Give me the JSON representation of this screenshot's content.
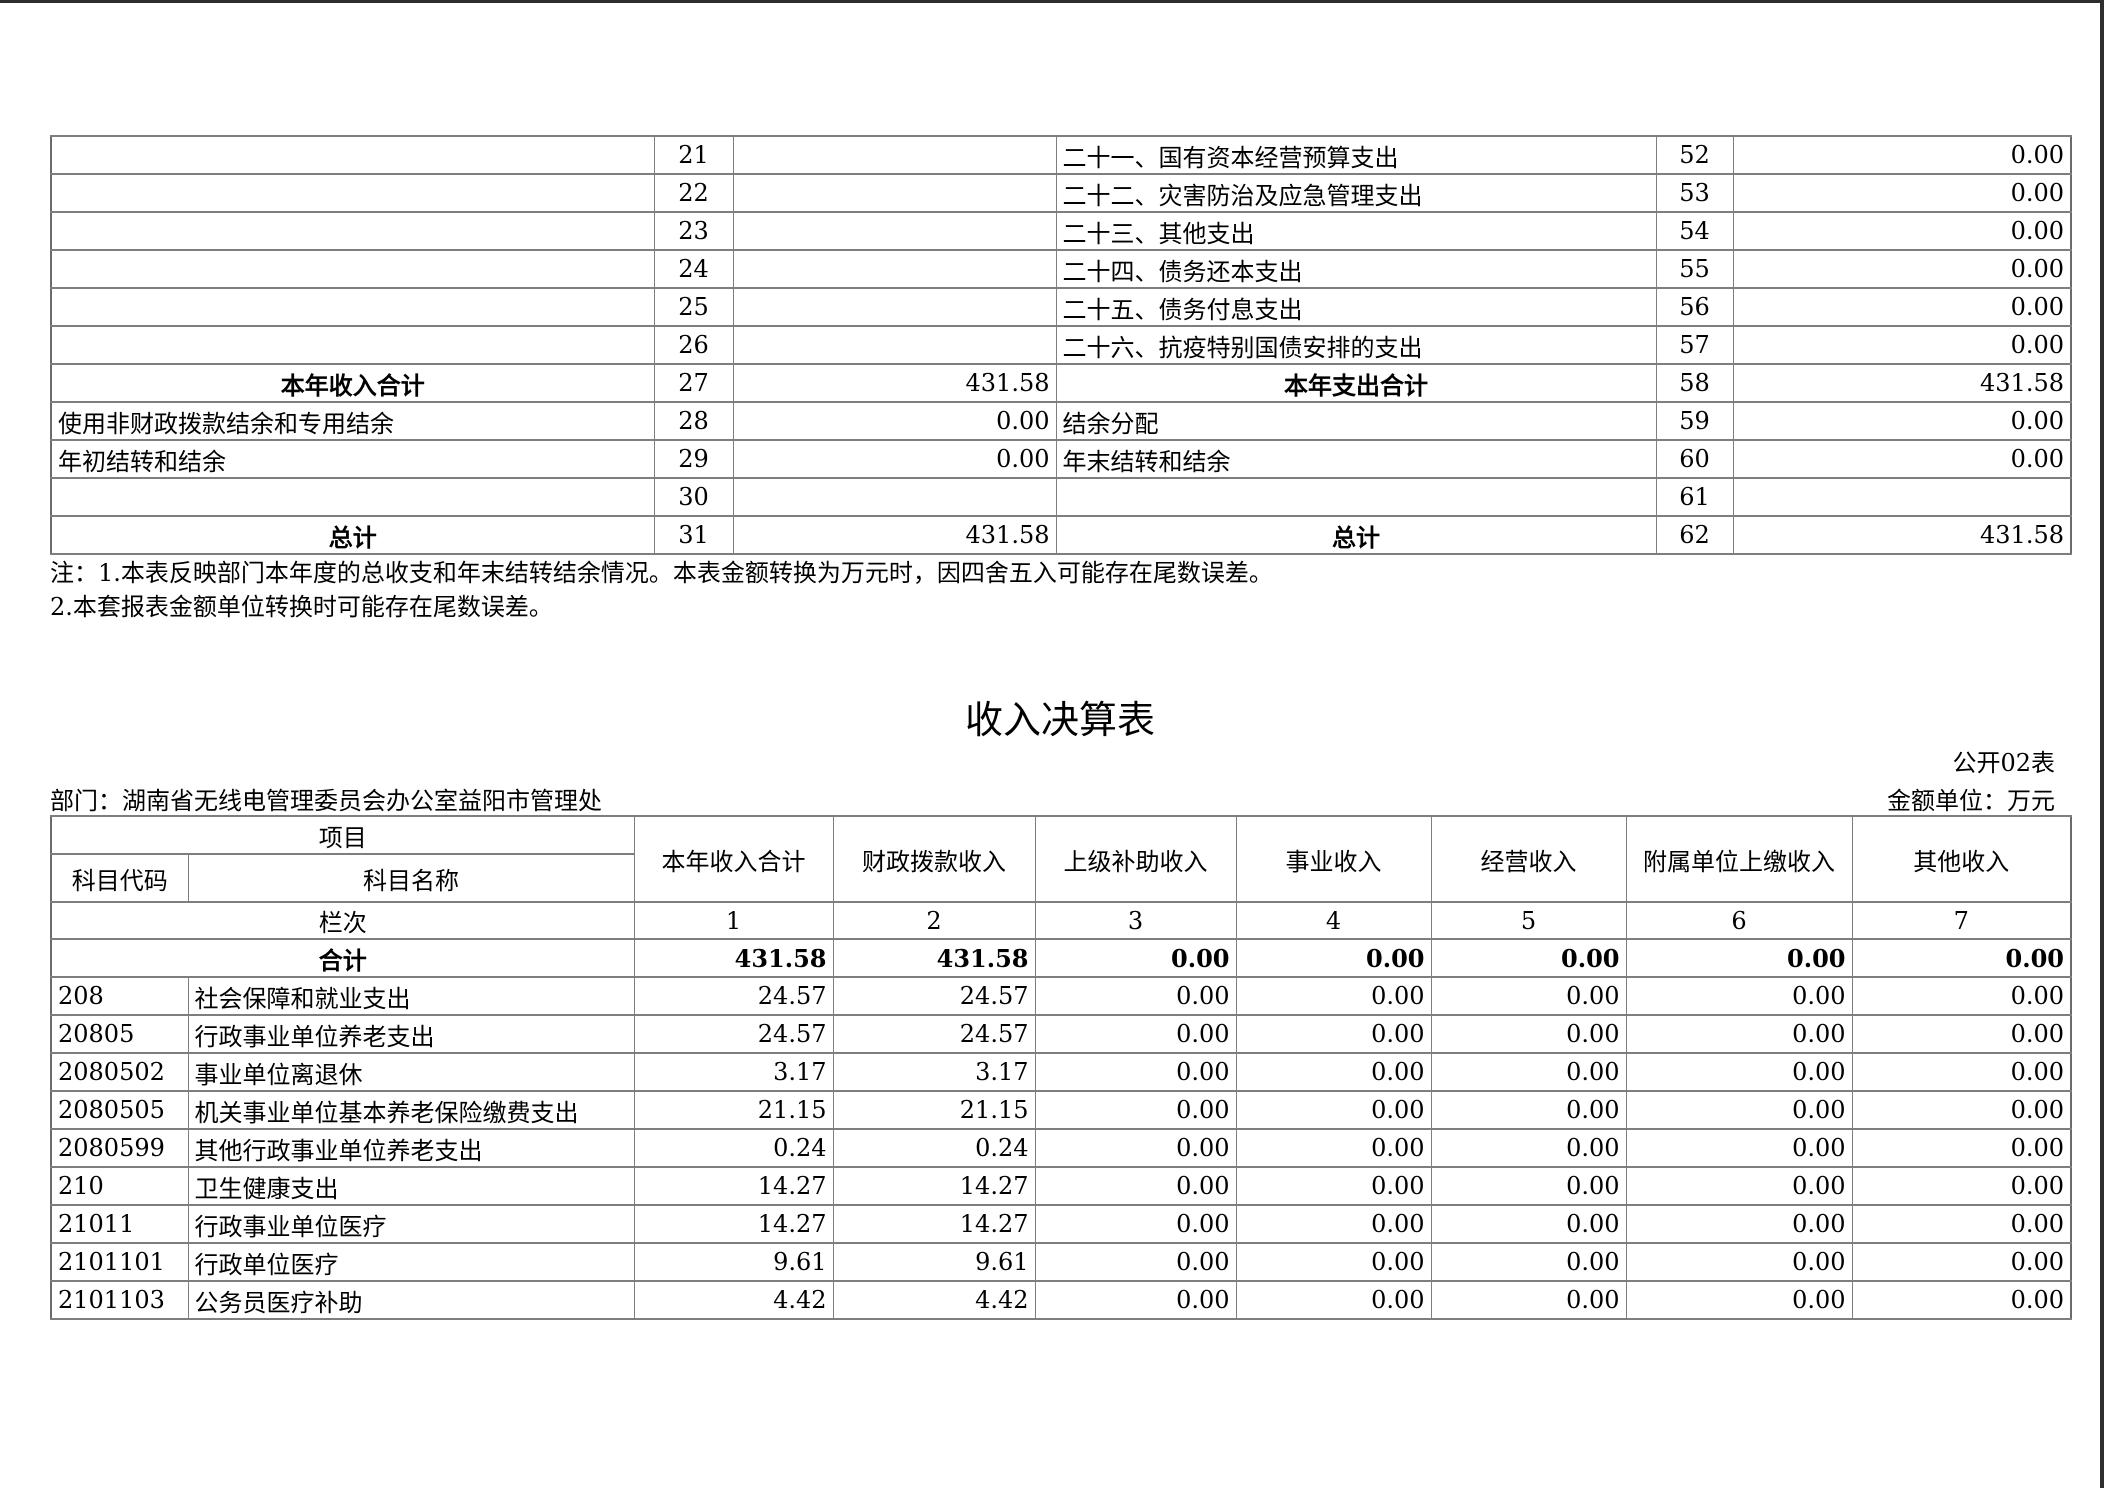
{
  "page": {
    "title": "收入决算表",
    "form_code": "公开02表",
    "department_line": "部门：湖南省无线电管理委员会办公室益阳市管理处",
    "unit_line": "金额单位：万元",
    "notes": [
      "注：1.本表反映部门本年度的总收支和年末结转结余情况。本表金额转换为万元时，因四舍五入可能存在尾数误差。",
      "2.本套报表金额单位转换时可能存在尾数误差。"
    ]
  },
  "balance_table": {
    "rows": [
      {
        "l_label": "",
        "l_bold": false,
        "l_seq": "21",
        "l_val": "",
        "r_label": "二十一、国有资本经营预算支出",
        "r_bold": false,
        "r_seq": "52",
        "r_val": "0.00"
      },
      {
        "l_label": "",
        "l_bold": false,
        "l_seq": "22",
        "l_val": "",
        "r_label": "二十二、灾害防治及应急管理支出",
        "r_bold": false,
        "r_seq": "53",
        "r_val": "0.00"
      },
      {
        "l_label": "",
        "l_bold": false,
        "l_seq": "23",
        "l_val": "",
        "r_label": "二十三、其他支出",
        "r_bold": false,
        "r_seq": "54",
        "r_val": "0.00"
      },
      {
        "l_label": "",
        "l_bold": false,
        "l_seq": "24",
        "l_val": "",
        "r_label": "二十四、债务还本支出",
        "r_bold": false,
        "r_seq": "55",
        "r_val": "0.00"
      },
      {
        "l_label": "",
        "l_bold": false,
        "l_seq": "25",
        "l_val": "",
        "r_label": "二十五、债务付息支出",
        "r_bold": false,
        "r_seq": "56",
        "r_val": "0.00"
      },
      {
        "l_label": "",
        "l_bold": false,
        "l_seq": "26",
        "l_val": "",
        "r_label": "二十六、抗疫特别国债安排的支出",
        "r_bold": false,
        "r_seq": "57",
        "r_val": "0.00"
      },
      {
        "l_label": "本年收入合计",
        "l_bold": true,
        "l_seq": "27",
        "l_val": "431.58",
        "r_label": "本年支出合计",
        "r_bold": true,
        "r_seq": "58",
        "r_val": "431.58"
      },
      {
        "l_label": "使用非财政拨款结余和专用结余",
        "l_bold": false,
        "l_seq": "28",
        "l_val": "0.00",
        "r_label": "结余分配",
        "r_bold": false,
        "r_seq": "59",
        "r_val": "0.00"
      },
      {
        "l_label": "年初结转和结余",
        "l_bold": false,
        "l_seq": "29",
        "l_val": "0.00",
        "r_label": "年末结转和结余",
        "r_bold": false,
        "r_seq": "60",
        "r_val": "0.00"
      },
      {
        "l_label": "",
        "l_bold": false,
        "l_seq": "30",
        "l_val": "",
        "r_label": "",
        "r_bold": false,
        "r_seq": "61",
        "r_val": ""
      },
      {
        "l_label": "总计",
        "l_bold": true,
        "l_seq": "31",
        "l_val": "431.58",
        "r_label": "总计",
        "r_bold": true,
        "r_seq": "62",
        "r_val": "431.58"
      }
    ]
  },
  "income_table": {
    "header": {
      "project_label": "项目",
      "code_label": "科目代码",
      "name_label": "科目名称",
      "column_row_label": "栏次",
      "columns": [
        "本年收入合计",
        "财政拨款收入",
        "上级补助收入",
        "事业收入",
        "经营收入",
        "附属单位上缴收入",
        "其他收入"
      ],
      "column_numbers": [
        "1",
        "2",
        "3",
        "4",
        "5",
        "6",
        "7"
      ]
    },
    "rows": [
      {
        "merged": "合计",
        "bold": true,
        "vals": [
          "431.58",
          "431.58",
          "0.00",
          "0.00",
          "0.00",
          "0.00",
          "0.00"
        ]
      },
      {
        "code": "208",
        "name": "社会保障和就业支出",
        "bold": false,
        "vals": [
          "24.57",
          "24.57",
          "0.00",
          "0.00",
          "0.00",
          "0.00",
          "0.00"
        ]
      },
      {
        "code": "20805",
        "name": "行政事业单位养老支出",
        "bold": false,
        "vals": [
          "24.57",
          "24.57",
          "0.00",
          "0.00",
          "0.00",
          "0.00",
          "0.00"
        ]
      },
      {
        "code": "2080502",
        "name": "事业单位离退休",
        "bold": false,
        "vals": [
          "3.17",
          "3.17",
          "0.00",
          "0.00",
          "0.00",
          "0.00",
          "0.00"
        ]
      },
      {
        "code": "2080505",
        "name": "机关事业单位基本养老保险缴费支出",
        "bold": false,
        "vals": [
          "21.15",
          "21.15",
          "0.00",
          "0.00",
          "0.00",
          "0.00",
          "0.00"
        ]
      },
      {
        "code": "2080599",
        "name": "其他行政事业单位养老支出",
        "bold": false,
        "vals": [
          "0.24",
          "0.24",
          "0.00",
          "0.00",
          "0.00",
          "0.00",
          "0.00"
        ]
      },
      {
        "code": "210",
        "name": "卫生健康支出",
        "bold": false,
        "vals": [
          "14.27",
          "14.27",
          "0.00",
          "0.00",
          "0.00",
          "0.00",
          "0.00"
        ]
      },
      {
        "code": "21011",
        "name": "行政事业单位医疗",
        "bold": false,
        "vals": [
          "14.27",
          "14.27",
          "0.00",
          "0.00",
          "0.00",
          "0.00",
          "0.00"
        ]
      },
      {
        "code": "2101101",
        "name": "行政单位医疗",
        "bold": false,
        "vals": [
          "9.61",
          "9.61",
          "0.00",
          "0.00",
          "0.00",
          "0.00",
          "0.00"
        ]
      },
      {
        "code": "2101103",
        "name": "公务员医疗补助",
        "bold": false,
        "vals": [
          "4.42",
          "4.42",
          "0.00",
          "0.00",
          "0.00",
          "0.00",
          "0.00"
        ]
      }
    ]
  },
  "layout": {
    "border_color": "#7e7e7e",
    "page_edge_color": "#2e2e2e",
    "balance_col_widths": [
      603,
      79,
      323,
      600,
      77,
      338
    ],
    "income_col_widths": [
      137,
      446,
      199,
      202,
      201,
      195,
      195,
      226,
      219
    ]
  }
}
